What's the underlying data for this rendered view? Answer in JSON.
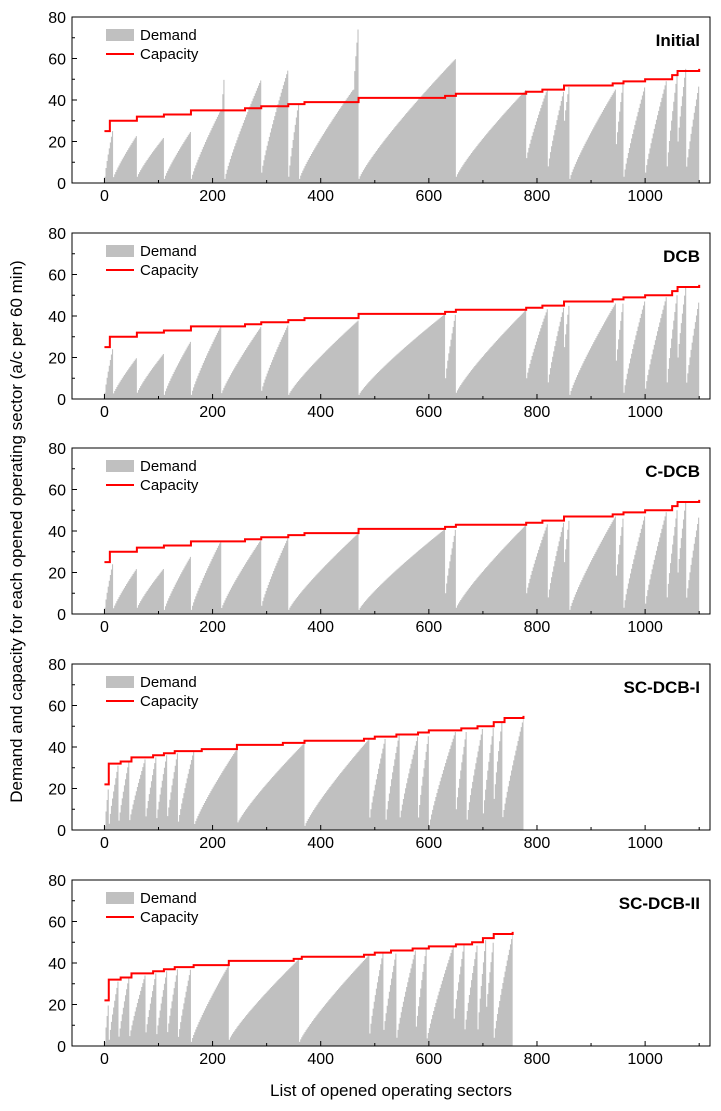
{
  "figure": {
    "xlabel": "List of opened operating sectors",
    "ylabel": "Demand and capacity for each opened operating sector (a/c per 60 min)"
  },
  "colors": {
    "demand": "#c0c0c0",
    "capacity": "#ff0000",
    "axis": "#000000"
  },
  "chart_data": [
    {
      "type": "bar",
      "title": "Initial",
      "xlim": [
        -60,
        1120
      ],
      "ylim": [
        0,
        80
      ],
      "xticks": [
        0,
        200,
        400,
        600,
        800,
        1000
      ],
      "yticks": [
        0,
        20,
        40,
        60,
        80
      ],
      "legend": [
        "Demand",
        "Capacity"
      ],
      "legend_position": "top-left",
      "n": 1100,
      "capacity_steps": [
        [
          0,
          25
        ],
        [
          10,
          30
        ],
        [
          60,
          32
        ],
        [
          110,
          33
        ],
        [
          160,
          35
        ],
        [
          220,
          35
        ],
        [
          260,
          36
        ],
        [
          290,
          37
        ],
        [
          340,
          38
        ],
        [
          370,
          39
        ],
        [
          470,
          41
        ],
        [
          630,
          42
        ],
        [
          650,
          43
        ],
        [
          780,
          44
        ],
        [
          810,
          45
        ],
        [
          850,
          47
        ],
        [
          940,
          48
        ],
        [
          960,
          49
        ],
        [
          1000,
          50
        ],
        [
          1050,
          52
        ],
        [
          1060,
          54
        ],
        [
          1100,
          55
        ]
      ],
      "demand_segments": [
        [
          0,
          15,
          3,
          25
        ],
        [
          15,
          60,
          2,
          23
        ],
        [
          60,
          110,
          3,
          22
        ],
        [
          110,
          160,
          2,
          25
        ],
        [
          160,
          215,
          2,
          35
        ],
        [
          215,
          222,
          30,
          53
        ],
        [
          222,
          290,
          2,
          50
        ],
        [
          290,
          340,
          5,
          55
        ],
        [
          340,
          360,
          3,
          40
        ],
        [
          360,
          460,
          2,
          45
        ],
        [
          460,
          470,
          45,
          77
        ],
        [
          470,
          650,
          2,
          60
        ],
        [
          650,
          780,
          3,
          45
        ],
        [
          780,
          820,
          12,
          46
        ],
        [
          820,
          850,
          8,
          45
        ],
        [
          850,
          860,
          30,
          48
        ],
        [
          860,
          945,
          2,
          45
        ],
        [
          945,
          960,
          15,
          50
        ],
        [
          960,
          1000,
          3,
          47
        ],
        [
          1000,
          1040,
          5,
          50
        ],
        [
          1040,
          1060,
          8,
          54
        ],
        [
          1060,
          1075,
          20,
          55
        ],
        [
          1075,
          1100,
          5,
          48
        ]
      ]
    },
    {
      "type": "bar",
      "title": "DCB",
      "xlim": [
        -60,
        1120
      ],
      "ylim": [
        0,
        80
      ],
      "xticks": [
        0,
        200,
        400,
        600,
        800,
        1000
      ],
      "yticks": [
        0,
        20,
        40,
        60,
        80
      ],
      "legend": [
        "Demand",
        "Capacity"
      ],
      "legend_position": "top-left",
      "n": 1100,
      "capacity_steps": [
        [
          0,
          25
        ],
        [
          10,
          30
        ],
        [
          60,
          32
        ],
        [
          110,
          33
        ],
        [
          160,
          35
        ],
        [
          220,
          35
        ],
        [
          260,
          36
        ],
        [
          290,
          37
        ],
        [
          340,
          38
        ],
        [
          370,
          39
        ],
        [
          470,
          41
        ],
        [
          630,
          42
        ],
        [
          650,
          43
        ],
        [
          780,
          44
        ],
        [
          810,
          45
        ],
        [
          850,
          47
        ],
        [
          940,
          48
        ],
        [
          960,
          49
        ],
        [
          1000,
          50
        ],
        [
          1050,
          52
        ],
        [
          1060,
          54
        ],
        [
          1100,
          55
        ]
      ],
      "demand_segments": [
        [
          0,
          15,
          3,
          24
        ],
        [
          15,
          60,
          2,
          20
        ],
        [
          60,
          110,
          3,
          22
        ],
        [
          110,
          160,
          2,
          28
        ],
        [
          160,
          215,
          2,
          35
        ],
        [
          215,
          290,
          2,
          35
        ],
        [
          290,
          340,
          4,
          36
        ],
        [
          340,
          470,
          2,
          38
        ],
        [
          470,
          630,
          2,
          41
        ],
        [
          630,
          650,
          10,
          42
        ],
        [
          650,
          780,
          3,
          43
        ],
        [
          780,
          820,
          10,
          44
        ],
        [
          820,
          850,
          8,
          45
        ],
        [
          850,
          860,
          25,
          47
        ],
        [
          860,
          945,
          2,
          46
        ],
        [
          945,
          960,
          15,
          48
        ],
        [
          960,
          1000,
          3,
          48
        ],
        [
          1000,
          1040,
          5,
          50
        ],
        [
          1040,
          1060,
          8,
          52
        ],
        [
          1060,
          1075,
          20,
          54
        ],
        [
          1075,
          1100,
          5,
          48
        ]
      ]
    },
    {
      "type": "bar",
      "title": "C-DCB",
      "xlim": [
        -60,
        1120
      ],
      "ylim": [
        0,
        80
      ],
      "xticks": [
        0,
        200,
        400,
        600,
        800,
        1000
      ],
      "yticks": [
        0,
        20,
        40,
        60,
        80
      ],
      "legend": [
        "Demand",
        "Capacity"
      ],
      "legend_position": "top-left",
      "n": 1100,
      "capacity_steps": [
        [
          0,
          25
        ],
        [
          10,
          30
        ],
        [
          60,
          32
        ],
        [
          110,
          33
        ],
        [
          160,
          35
        ],
        [
          220,
          35
        ],
        [
          260,
          36
        ],
        [
          290,
          37
        ],
        [
          340,
          38
        ],
        [
          370,
          39
        ],
        [
          470,
          41
        ],
        [
          630,
          42
        ],
        [
          650,
          43
        ],
        [
          780,
          44
        ],
        [
          810,
          45
        ],
        [
          850,
          47
        ],
        [
          940,
          48
        ],
        [
          960,
          49
        ],
        [
          1000,
          50
        ],
        [
          1050,
          52
        ],
        [
          1060,
          54
        ],
        [
          1100,
          55
        ]
      ],
      "demand_segments": [
        [
          0,
          15,
          3,
          24
        ],
        [
          15,
          60,
          2,
          22
        ],
        [
          60,
          110,
          3,
          22
        ],
        [
          110,
          160,
          2,
          28
        ],
        [
          160,
          215,
          2,
          35
        ],
        [
          215,
          290,
          2,
          36
        ],
        [
          290,
          340,
          4,
          37
        ],
        [
          340,
          470,
          2,
          39
        ],
        [
          470,
          630,
          2,
          41
        ],
        [
          630,
          650,
          10,
          42
        ],
        [
          650,
          780,
          3,
          43
        ],
        [
          780,
          820,
          10,
          44
        ],
        [
          820,
          850,
          8,
          45
        ],
        [
          850,
          860,
          25,
          47
        ],
        [
          860,
          945,
          2,
          47
        ],
        [
          945,
          960,
          15,
          48
        ],
        [
          960,
          1000,
          3,
          48
        ],
        [
          1000,
          1040,
          5,
          50
        ],
        [
          1040,
          1060,
          8,
          52
        ],
        [
          1060,
          1075,
          20,
          54
        ],
        [
          1075,
          1100,
          5,
          48
        ]
      ]
    },
    {
      "type": "bar",
      "title": "SC-DCB-I",
      "xlim": [
        -60,
        1120
      ],
      "ylim": [
        0,
        80
      ],
      "xticks": [
        0,
        200,
        400,
        600,
        800,
        1000
      ],
      "yticks": [
        0,
        20,
        40,
        60,
        80
      ],
      "legend": [
        "Demand",
        "Capacity"
      ],
      "legend_position": "top-left",
      "n": 775,
      "capacity_steps": [
        [
          0,
          22
        ],
        [
          8,
          32
        ],
        [
          30,
          33
        ],
        [
          50,
          35
        ],
        [
          90,
          36
        ],
        [
          110,
          37
        ],
        [
          130,
          38
        ],
        [
          180,
          39
        ],
        [
          245,
          41
        ],
        [
          330,
          42
        ],
        [
          370,
          43
        ],
        [
          480,
          44
        ],
        [
          500,
          45
        ],
        [
          540,
          46
        ],
        [
          580,
          47
        ],
        [
          600,
          48
        ],
        [
          660,
          49
        ],
        [
          690,
          50
        ],
        [
          720,
          52
        ],
        [
          740,
          54
        ],
        [
          775,
          55
        ]
      ],
      "demand_segments": [
        [
          0,
          8,
          2,
          22
        ],
        [
          8,
          25,
          3,
          31
        ],
        [
          25,
          45,
          2,
          33
        ],
        [
          45,
          75,
          3,
          34
        ],
        [
          75,
          95,
          4,
          35
        ],
        [
          95,
          115,
          3,
          36
        ],
        [
          115,
          135,
          4,
          37
        ],
        [
          135,
          165,
          2,
          38
        ],
        [
          165,
          245,
          2,
          39
        ],
        [
          245,
          370,
          3,
          42
        ],
        [
          370,
          490,
          2,
          44
        ],
        [
          490,
          520,
          6,
          45
        ],
        [
          520,
          545,
          5,
          46
        ],
        [
          545,
          580,
          4,
          46
        ],
        [
          580,
          600,
          6,
          47
        ],
        [
          600,
          650,
          2,
          48
        ],
        [
          650,
          670,
          10,
          49
        ],
        [
          670,
          700,
          5,
          50
        ],
        [
          700,
          720,
          8,
          51
        ],
        [
          720,
          735,
          15,
          52
        ],
        [
          735,
          775,
          4,
          54
        ]
      ]
    },
    {
      "type": "bar",
      "title": "SC-DCB-II",
      "xlim": [
        -60,
        1120
      ],
      "ylim": [
        0,
        80
      ],
      "xticks": [
        0,
        200,
        400,
        600,
        800,
        1000
      ],
      "yticks": [
        0,
        20,
        40,
        60,
        80
      ],
      "legend": [
        "Demand",
        "Capacity"
      ],
      "legend_position": "top-left",
      "n": 755,
      "capacity_steps": [
        [
          0,
          22
        ],
        [
          8,
          32
        ],
        [
          30,
          33
        ],
        [
          50,
          35
        ],
        [
          90,
          36
        ],
        [
          110,
          37
        ],
        [
          130,
          38
        ],
        [
          165,
          39
        ],
        [
          230,
          41
        ],
        [
          350,
          42
        ],
        [
          365,
          43
        ],
        [
          480,
          44
        ],
        [
          500,
          45
        ],
        [
          530,
          46
        ],
        [
          570,
          47
        ],
        [
          600,
          48
        ],
        [
          650,
          49
        ],
        [
          680,
          50
        ],
        [
          700,
          52
        ],
        [
          720,
          54
        ],
        [
          755,
          55
        ]
      ],
      "demand_segments": [
        [
          0,
          8,
          2,
          22
        ],
        [
          8,
          25,
          3,
          31
        ],
        [
          25,
          45,
          2,
          33
        ],
        [
          45,
          75,
          3,
          34
        ],
        [
          75,
          95,
          4,
          35
        ],
        [
          95,
          115,
          3,
          36
        ],
        [
          115,
          135,
          4,
          37
        ],
        [
          135,
          160,
          2,
          38
        ],
        [
          160,
          230,
          2,
          39
        ],
        [
          230,
          360,
          3,
          42
        ],
        [
          360,
          490,
          2,
          44
        ],
        [
          490,
          515,
          6,
          45
        ],
        [
          515,
          540,
          5,
          46
        ],
        [
          540,
          575,
          4,
          46
        ],
        [
          575,
          595,
          6,
          47
        ],
        [
          595,
          645,
          2,
          48
        ],
        [
          645,
          665,
          10,
          49
        ],
        [
          665,
          690,
          5,
          50
        ],
        [
          690,
          705,
          8,
          51
        ],
        [
          705,
          720,
          15,
          52
        ],
        [
          720,
          755,
          4,
          54
        ]
      ]
    }
  ]
}
